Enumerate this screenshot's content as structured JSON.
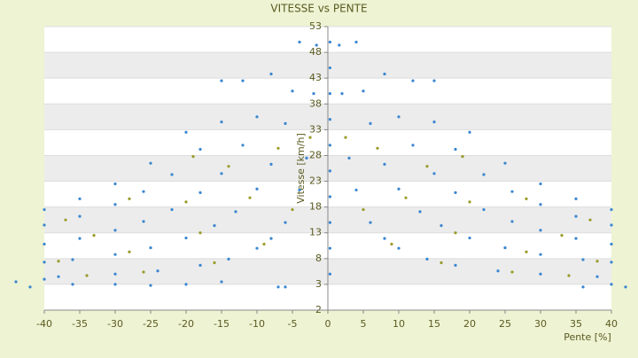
{
  "chart_data": {
    "type": "scatter",
    "title": "VITESSE vs PENTE",
    "x_label": "Pente [%]",
    "y_label": "Vitesse [km/h]",
    "xlim": [
      -40,
      40
    ],
    "xticks": [
      -40,
      -35,
      -30,
      -25,
      -20,
      -15,
      -10,
      -5,
      0,
      5,
      10,
      15,
      20,
      25,
      30,
      35,
      40
    ],
    "ylim": [
      -2,
      53
    ],
    "yticks": [
      -2,
      3,
      8,
      13,
      18,
      23,
      28,
      33,
      38,
      43,
      48,
      53
    ],
    "grid": true,
    "series": [
      {
        "color": "#3a86d0",
        "x": [
          1.6,
          2,
          3,
          4,
          6,
          8,
          10,
          14,
          18,
          24,
          30,
          38,
          4,
          5,
          6,
          8,
          10,
          13,
          16,
          20,
          25,
          30,
          36,
          40,
          8,
          10,
          12,
          15,
          18,
          22,
          26,
          30,
          35,
          40,
          12,
          15,
          18,
          22,
          26,
          30,
          35,
          40,
          15,
          20,
          25,
          30,
          35,
          40,
          -1.6,
          -2,
          -3,
          -4,
          -6,
          -8,
          -10,
          -14,
          -18,
          -24,
          -30,
          -38,
          -4,
          -5,
          -6,
          -8,
          -10,
          -13,
          -16,
          -20,
          -25,
          -30,
          -36,
          -40,
          -8,
          -10,
          -12,
          -15,
          -18,
          -22,
          -26,
          -30,
          -35,
          -40,
          -12,
          -15,
          -18,
          -22,
          -26,
          -30,
          -35,
          -40,
          -15,
          -20,
          -25,
          -30,
          -35,
          -40,
          0.3,
          0.3,
          0.3,
          0.3,
          0.3,
          0.3,
          0.3,
          0.3,
          0.3,
          0.3,
          -44,
          -42,
          -40,
          -36,
          -30,
          -25,
          -20,
          -15,
          -6,
          -7,
          36,
          40,
          42
        ],
        "y": [
          49.4,
          40,
          27.5,
          21.3,
          15,
          11.9,
          10,
          7.9,
          6.7,
          5.6,
          5,
          4.5,
          50,
          40.5,
          34.2,
          26.3,
          21.5,
          17.1,
          14.4,
          12,
          10.1,
          8.8,
          7.8,
          7.3,
          43.8,
          35.5,
          30,
          24.5,
          20.8,
          17.5,
          15.2,
          13.5,
          11.9,
          10.8,
          42.5,
          34.5,
          29.2,
          24.3,
          21,
          18.5,
          16.2,
          14.5,
          42.5,
          32.5,
          26.5,
          22.5,
          19.6,
          17.5,
          49.4,
          40,
          27.5,
          21.3,
          15,
          11.9,
          10,
          7.9,
          6.7,
          5.6,
          5,
          4.5,
          50,
          40.5,
          34.2,
          26.3,
          21.5,
          17.1,
          14.4,
          12,
          10.1,
          8.8,
          7.8,
          7.3,
          43.8,
          35.5,
          30,
          24.5,
          20.8,
          17.5,
          15.2,
          13.5,
          11.9,
          10.8,
          42.5,
          34.5,
          29.2,
          24.3,
          21,
          18.5,
          16.2,
          14.5,
          42.5,
          32.5,
          26.5,
          22.5,
          19.6,
          17.5,
          5,
          10,
          15,
          20,
          25,
          30,
          35,
          40,
          45,
          50,
          3.5,
          2.5,
          4,
          3,
          3,
          2.8,
          3,
          3.5,
          2.5,
          2.5,
          2.5,
          3,
          2.5
        ]
      },
      {
        "color": "#9a9a2a",
        "x": [
          2.5,
          5,
          9,
          16,
          26,
          34,
          7,
          11,
          18,
          28,
          38,
          14,
          20,
          33,
          19,
          28,
          37,
          -2.5,
          -5,
          -9,
          -16,
          -26,
          -34,
          -7,
          -11,
          -18,
          -28,
          -38,
          -14,
          -20,
          -33,
          -19,
          -28,
          -37
        ],
        "y": [
          31.5,
          17.5,
          10.8,
          7.2,
          5.4,
          4.7,
          29.4,
          19.8,
          13,
          9.3,
          7.5,
          25.9,
          19,
          12.5,
          27.8,
          19.6,
          15.5,
          31.5,
          17.5,
          10.8,
          7.2,
          5.4,
          4.7,
          29.4,
          19.8,
          13,
          9.3,
          7.5,
          25.9,
          19,
          12.5,
          27.8,
          19.6,
          15.5
        ]
      }
    ]
  }
}
